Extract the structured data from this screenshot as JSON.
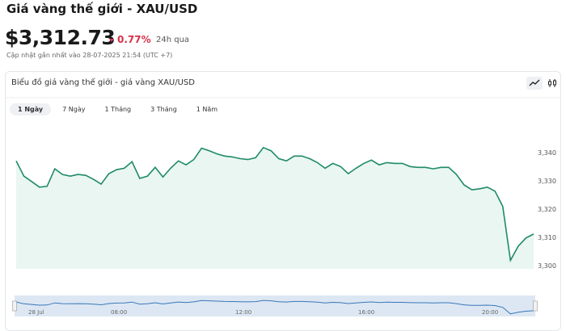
{
  "header": {
    "title": "Giá vàng thế giới - XAU/USD",
    "price": "$3,312.73",
    "change": "0.77%",
    "period": "24h qua",
    "updated": "Cập nhật gần nhất vào 28-07-2025 21:54 (UTC +7)"
  },
  "card": {
    "title": "Biểu đồ giá vàng thế giới - giá vàng XAU/USD",
    "tabs": [
      "1 Ngày",
      "7 Ngày",
      "1 Tháng",
      "3 Tháng",
      "1 Năm"
    ]
  },
  "chart_data": {
    "type": "line",
    "color": "#1e8a6a",
    "values": [
      3337.2,
      3331.8,
      3329.9,
      3327.9,
      3328.2,
      3334.4,
      3332.4,
      3331.8,
      3332.4,
      3332.1,
      3330.7,
      3329.0,
      3332.7,
      3334.1,
      3334.6,
      3336.9,
      3331.0,
      3331.8,
      3334.9,
      3331.5,
      3334.6,
      3337.2,
      3335.8,
      3337.7,
      3341.7,
      3340.8,
      3339.7,
      3338.9,
      3338.6,
      3338.0,
      3337.7,
      3338.3,
      3341.9,
      3340.8,
      3338.0,
      3337.2,
      3338.9,
      3338.9,
      3338.0,
      3336.6,
      3334.6,
      3336.3,
      3335.2,
      3332.7,
      3334.6,
      3336.3,
      3337.5,
      3335.8,
      3336.6,
      3336.3,
      3336.3,
      3335.2,
      3334.9,
      3334.9,
      3334.4,
      3334.9,
      3334.9,
      3332.4,
      3328.7,
      3327.0,
      3327.3,
      3327.9,
      3326.5,
      3321.1,
      3302.0,
      3307.0,
      3309.9,
      3311.3
    ],
    "ylim": [
      3299,
      3347
    ],
    "yticks": [
      {
        "value": 3300,
        "label": "3,300"
      },
      {
        "value": 3310,
        "label": "3,310"
      },
      {
        "value": 3320,
        "label": "3,320"
      },
      {
        "value": 3330,
        "label": "3,330"
      },
      {
        "value": 3340,
        "label": "3,340"
      }
    ],
    "navigator_labels": [
      "28 Jul",
      "08:00",
      "12:00",
      "16:00",
      "20:00"
    ]
  }
}
